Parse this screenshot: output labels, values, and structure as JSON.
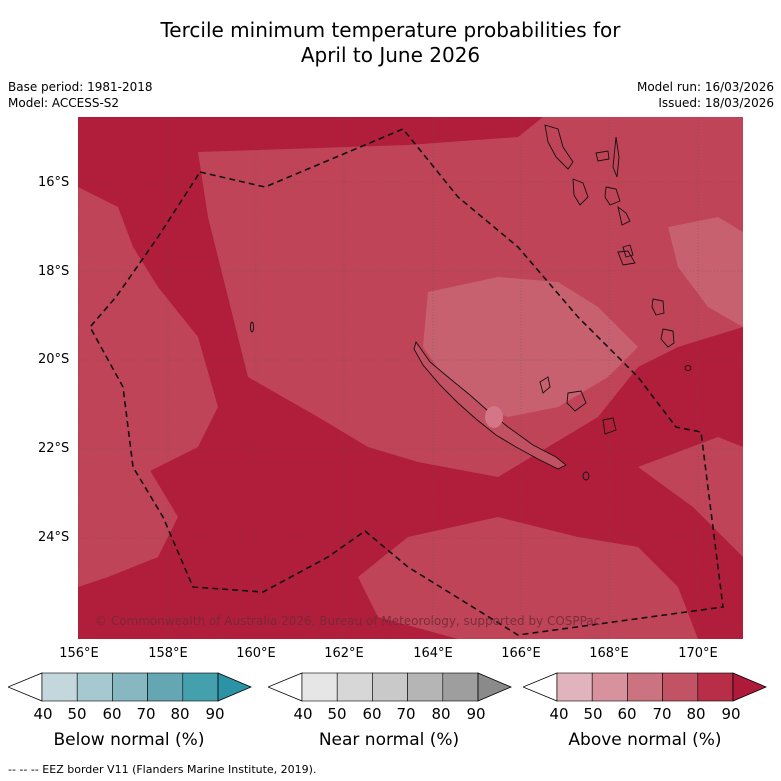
{
  "title": {
    "line1": "Tercile minimum temperature probabilities for",
    "line2": "April to June 2026"
  },
  "meta": {
    "base_period": "Base period: 1981-2018",
    "model": "Model: ACCESS-S2",
    "model_run": "Model run: 16/03/2026",
    "issued": "Issued: 18/03/2026"
  },
  "map": {
    "lat_labels": [
      "16°S",
      "18°S",
      "20°S",
      "22°S",
      "24°S"
    ],
    "lon_labels": [
      "156°E",
      "158°E",
      "160°E",
      "162°E",
      "164°E",
      "166°E",
      "168°E",
      "170°E"
    ],
    "copyright": "© Commonwealth of Australia 2026, Bureau of Meteorology, supported by COSPPac",
    "dominant_category": "Above normal",
    "region": "New Caledonia"
  },
  "colorbars": [
    {
      "label": "Below normal (%)",
      "ticks": [
        "40",
        "50",
        "60",
        "70",
        "80",
        "90"
      ],
      "colors": [
        "#c3d7dd",
        "#a6c9d0",
        "#87b7c1",
        "#65a6b3",
        "#45a0ae",
        "#2c93a7"
      ]
    },
    {
      "label": "Near normal (%)",
      "ticks": [
        "40",
        "50",
        "60",
        "70",
        "80",
        "90"
      ],
      "colors": [
        "#e6e6e6",
        "#d7d7d7",
        "#c9c9c9",
        "#b5b5b5",
        "#9e9e9e",
        "#8a8a8a"
      ]
    },
    {
      "label": "Above normal (%)",
      "ticks": [
        "40",
        "50",
        "60",
        "70",
        "80",
        "90"
      ],
      "colors": [
        "#e1b4bd",
        "#d8929e",
        "#cc7381",
        "#c25365",
        "#b82d48",
        "#af1a3a"
      ]
    }
  ],
  "legend": {
    "eez": "--  --  -- EEZ border V11 (Flanders Marine Institute, 2019)."
  },
  "colors": {
    "above_80_90": "#b11e3b",
    "above_70_80": "#bf4458",
    "above_60_70": "#c8616f"
  }
}
